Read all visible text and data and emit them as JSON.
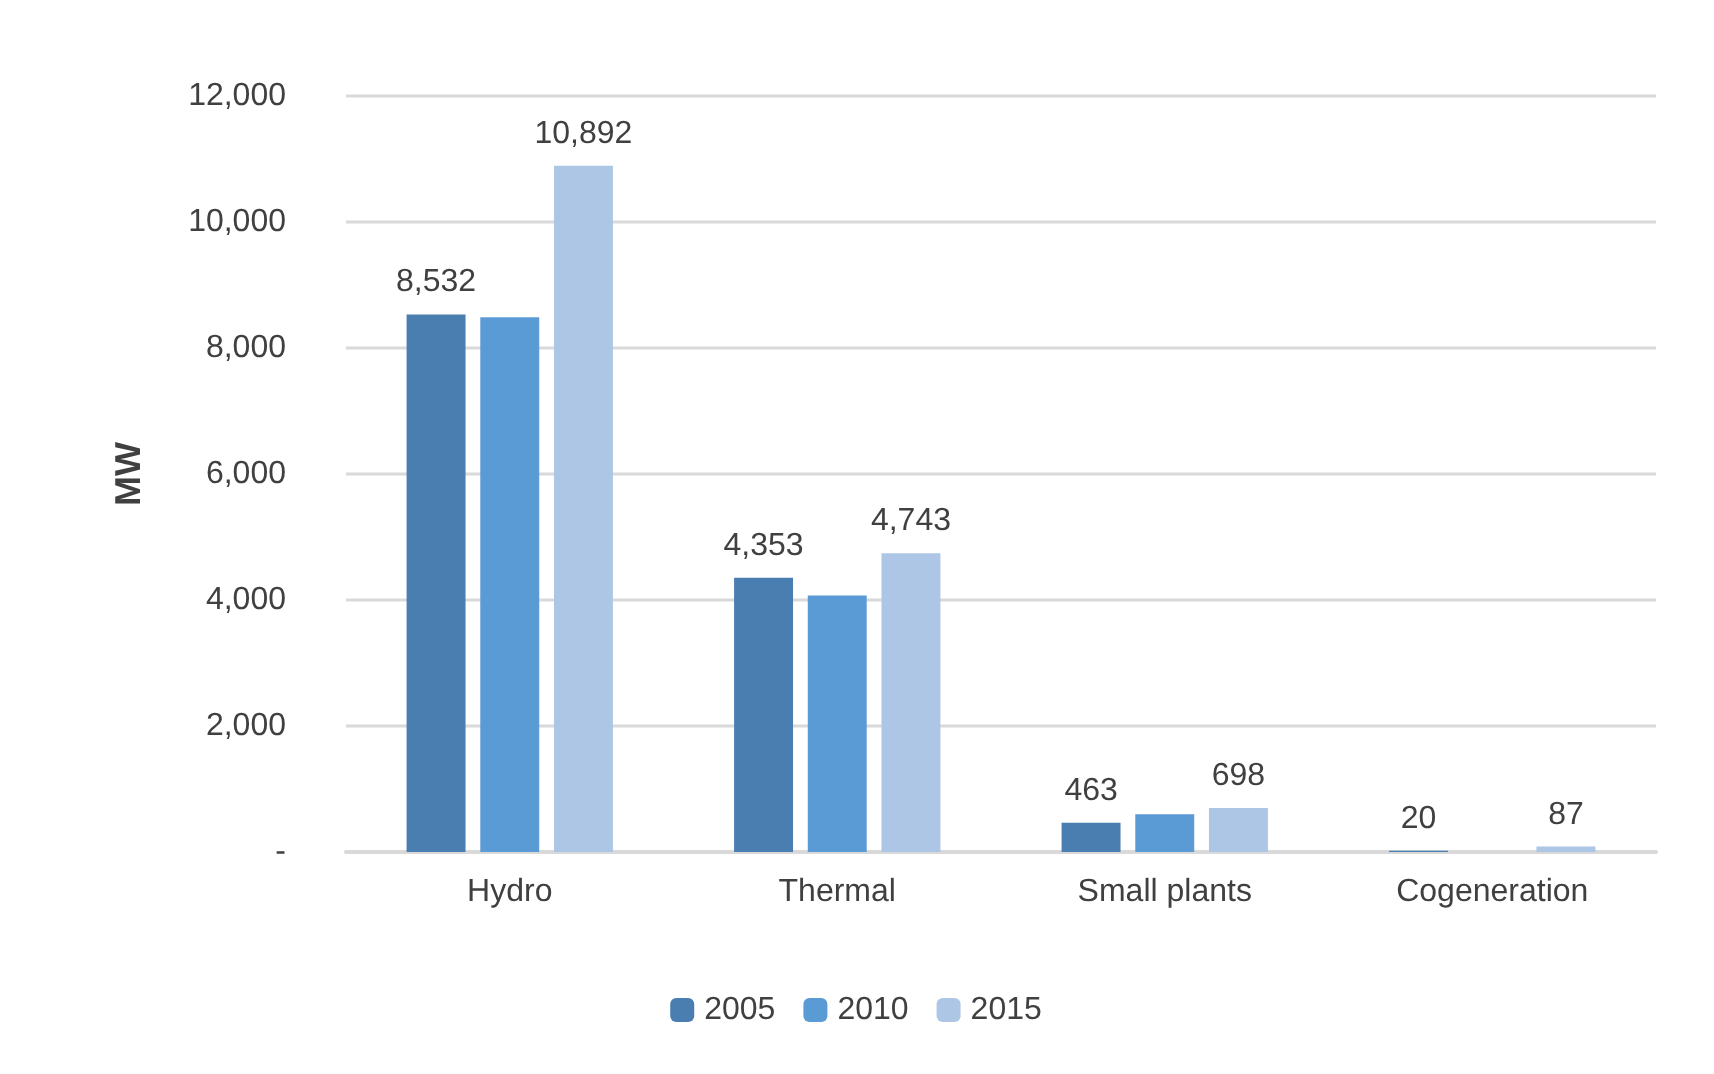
{
  "chart_data": {
    "type": "bar",
    "ylabel": "MW",
    "categories": [
      "Hydro",
      "Thermal",
      "Small plants",
      "Cogeneration"
    ],
    "series": [
      {
        "name": "2005",
        "color": "#4a7eb0",
        "values": [
          8532,
          4353,
          463,
          20
        ],
        "value_labels": [
          "8,532",
          "4,353",
          "463",
          "20"
        ]
      },
      {
        "name": "2010",
        "color": "#5b9bd5",
        "values": [
          8490,
          4070,
          600,
          0
        ]
      },
      {
        "name": "2015",
        "color": "#adc6e6",
        "values": [
          10892,
          4743,
          698,
          87
        ],
        "value_labels": [
          "10,892",
          "4,743",
          "698",
          "87"
        ]
      }
    ],
    "ylim": [
      0,
      12000
    ],
    "yticks": [
      {
        "value": 0,
        "label": "-"
      },
      {
        "value": 2000,
        "label": "2,000"
      },
      {
        "value": 4000,
        "label": "4,000"
      },
      {
        "value": 6000,
        "label": "6,000"
      },
      {
        "value": 8000,
        "label": "8,000"
      },
      {
        "value": 10000,
        "label": "10,000"
      },
      {
        "value": 12000,
        "label": "12,000"
      }
    ],
    "grid": "y",
    "legend": "bottom"
  }
}
